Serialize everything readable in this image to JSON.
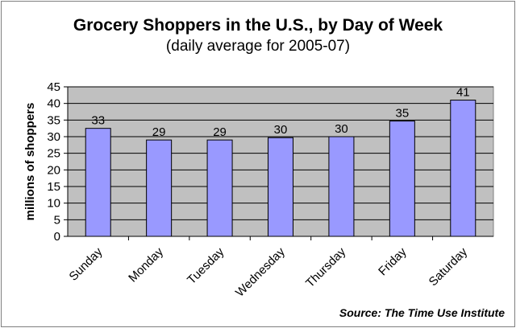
{
  "chart_data": {
    "type": "bar",
    "title": "Grocery Shoppers in the U.S., by Day of Week",
    "subtitle": "(daily average for 2005-07)",
    "categories": [
      "Sunday",
      "Monday",
      "Tuesday",
      "Wednesday",
      "Thursday",
      "Friday",
      "Saturday"
    ],
    "values": [
      32.5,
      29,
      29,
      29.7,
      30,
      34.7,
      41
    ],
    "data_labels": [
      "33",
      "29",
      "29",
      "30",
      "30",
      "35",
      "41"
    ],
    "xlabel": "",
    "ylabel": "millions of shoppers",
    "ylim": [
      0,
      45
    ],
    "yticks": [
      0,
      5,
      10,
      15,
      20,
      25,
      30,
      35,
      40,
      45
    ],
    "grid": true,
    "bar_color": "#9999ff",
    "plot_background": "#c0c0c0",
    "source": "Source: The Time Use Institute"
  }
}
